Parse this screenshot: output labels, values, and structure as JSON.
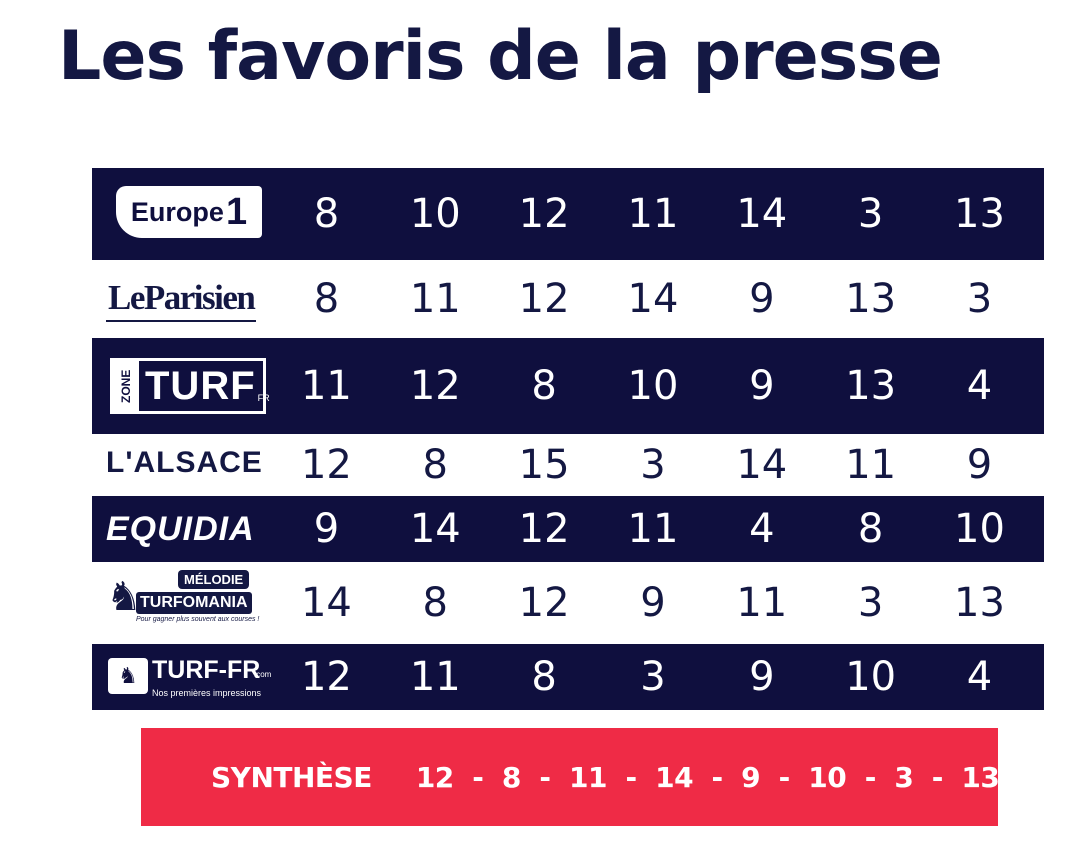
{
  "title": "Les favoris de la presse",
  "colors": {
    "navy": "#0f0f3e",
    "title": "#141843",
    "accent": "#ef2b46"
  },
  "rows": [
    {
      "source": "Europe 1",
      "logo_text": "Europe",
      "logo_suffix": "1",
      "numbers": [
        "8",
        "10",
        "12",
        "11",
        "14",
        "3",
        "13"
      ]
    },
    {
      "source": "Le Parisien",
      "logo_text": "LeParisien",
      "numbers": [
        "8",
        "11",
        "12",
        "14",
        "9",
        "13",
        "3"
      ]
    },
    {
      "source": "Zone Turf",
      "logo_zone": "ZONE",
      "logo_text": "TURF",
      "logo_suffix": "FR",
      "numbers": [
        "11",
        "12",
        "8",
        "10",
        "9",
        "13",
        "4"
      ]
    },
    {
      "source": "L'Alsace",
      "logo_text": "L'ALSACE",
      "numbers": [
        "12",
        "8",
        "15",
        "3",
        "14",
        "11",
        "9"
      ]
    },
    {
      "source": "Equidia",
      "logo_text": "EQUIDIA",
      "numbers": [
        "9",
        "14",
        "12",
        "11",
        "4",
        "8",
        "10"
      ]
    },
    {
      "source": "Mélodie Turfomania",
      "logo_top": "MÉLODIE",
      "logo_text": "TURFOMANIA",
      "logo_slogan": "Pour gagner plus souvent aux courses !",
      "numbers": [
        "14",
        "8",
        "12",
        "9",
        "11",
        "3",
        "13"
      ]
    },
    {
      "source": "Turf-FR",
      "logo_text": "TURF-FR",
      "logo_suffix": ".com",
      "logo_slogan": "Nos premières impressions",
      "numbers": [
        "12",
        "11",
        "8",
        "3",
        "9",
        "10",
        "4"
      ]
    }
  ],
  "synthese": {
    "label": "SYNTHÈSE",
    "sequence": "12  -  8  -  11  -  14  -  9  -  10  -  3  -  13"
  }
}
